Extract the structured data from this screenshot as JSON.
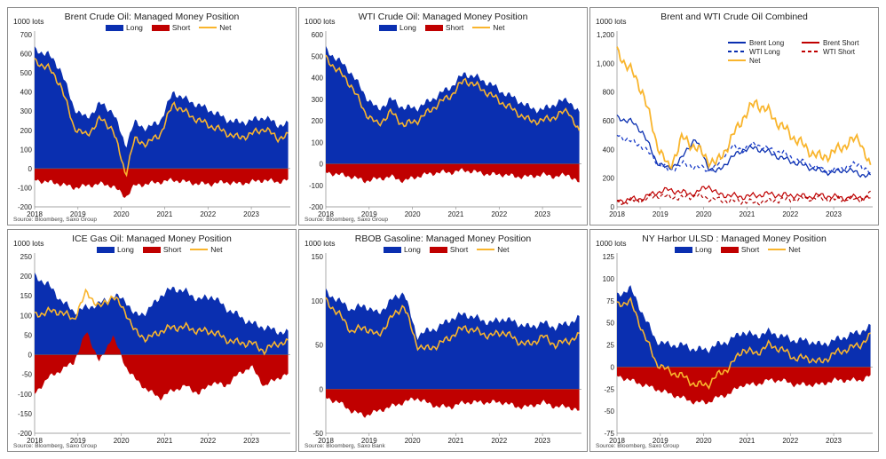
{
  "colors": {
    "long": "#0a2fb0",
    "short": "#c00000",
    "net": "#f9b52d",
    "wti_dash_long": "#1a3cc7",
    "wti_dash_short": "#b00000"
  },
  "legend": {
    "long": "Long",
    "short": "Short",
    "net": "Net"
  },
  "legend_combined": [
    "Brent Long",
    "WTI Long",
    "Net",
    "Brent Short",
    "WTI Short"
  ],
  "panels": [
    {
      "title": "Brent Crude Oil: Managed Money Position",
      "unit": "1000 lots",
      "source": "Source: Bloomberg, Saxo Group"
    },
    {
      "title": "WTI Crude Oil: Managed Money Position",
      "unit": "1000 lots",
      "source": "Source: Bloomberg, Saxo Group"
    },
    {
      "title": "Brent and WTI Crude Oil Combined",
      "unit": "1000 lots",
      "source": ""
    },
    {
      "title": "ICE Gas Oil: Managed Money Position",
      "unit": "1000 lots",
      "source": "Source: Bloomberg, Saxo Group"
    },
    {
      "title": "RBOB Gasoline: Managed Money Position",
      "unit": "1000 lots",
      "source": "Source: Bloomberg, Saxo Bank"
    },
    {
      "title": "NY Harbor ULSD : Managed Money Position",
      "unit": "1000 lots",
      "source": "Source: Bloomberg, Saxo Group"
    }
  ],
  "chart_data": [
    {
      "type": "area",
      "title": "Brent Crude Oil: Managed Money Position",
      "ylim": [
        -200,
        700
      ],
      "yticks": [
        "700",
        "600",
        "500",
        "400",
        "300",
        "200",
        "100",
        "0",
        "-100",
        "-200"
      ],
      "x_labels": [
        "2018",
        "2019",
        "2020",
        "2021",
        "2022",
        "2023"
      ],
      "x": [
        2018.0,
        2018.3,
        2018.6,
        2018.9,
        2019.2,
        2019.5,
        2019.8,
        2020.1,
        2020.3,
        2020.6,
        2020.9,
        2021.2,
        2021.5,
        2021.8,
        2022.1,
        2022.4,
        2022.7,
        2023.0,
        2023.3,
        2023.6,
        2023.85
      ],
      "series": [
        {
          "name": "Long",
          "values": [
            620,
            600,
            520,
            320,
            260,
            340,
            300,
            120,
            240,
            210,
            250,
            400,
            360,
            330,
            300,
            260,
            240,
            250,
            270,
            230,
            230
          ]
        },
        {
          "name": "Short",
          "values": [
            -60,
            -70,
            -80,
            -100,
            -90,
            -80,
            -90,
            -150,
            -90,
            -80,
            -70,
            -60,
            -70,
            -80,
            -80,
            -70,
            -80,
            -70,
            -60,
            -70,
            -60
          ]
        },
        {
          "name": "Net",
          "values": [
            560,
            530,
            440,
            220,
            170,
            260,
            210,
            -30,
            150,
            130,
            180,
            340,
            290,
            250,
            220,
            190,
            160,
            180,
            210,
            160,
            170
          ]
        }
      ]
    },
    {
      "type": "area",
      "title": "WTI Crude Oil: Managed Money Position",
      "ylim": [
        -200,
        600
      ],
      "yticks": [
        "600",
        "500",
        "400",
        "300",
        "200",
        "100",
        "0",
        "-100",
        "-200"
      ],
      "x_labels": [
        "2018",
        "2019",
        "2020",
        "2021",
        "2022",
        "2023"
      ],
      "x": [
        2018.0,
        2018.3,
        2018.6,
        2018.9,
        2019.2,
        2019.5,
        2019.8,
        2020.1,
        2020.3,
        2020.6,
        2020.9,
        2021.2,
        2021.5,
        2021.8,
        2022.1,
        2022.4,
        2022.7,
        2023.0,
        2023.3,
        2023.6,
        2023.85
      ],
      "series": [
        {
          "name": "Long",
          "values": [
            530,
            480,
            420,
            320,
            250,
            300,
            260,
            260,
            280,
            320,
            360,
            420,
            400,
            370,
            330,
            300,
            260,
            250,
            280,
            300,
            230
          ]
        },
        {
          "name": "Short",
          "values": [
            -40,
            -50,
            -60,
            -80,
            -70,
            -60,
            -80,
            -60,
            -50,
            -40,
            -40,
            -30,
            -40,
            -50,
            -50,
            -60,
            -60,
            -50,
            -60,
            -50,
            -90
          ]
        },
        {
          "name": "Net",
          "values": [
            490,
            430,
            360,
            240,
            180,
            240,
            180,
            200,
            230,
            280,
            320,
            390,
            360,
            320,
            280,
            240,
            200,
            200,
            220,
            250,
            140
          ]
        }
      ]
    },
    {
      "type": "line",
      "title": "Brent and WTI Crude Oil Combined",
      "ylim": [
        0,
        1200
      ],
      "yticks": [
        "1,200",
        "1,000",
        "800",
        "600",
        "400",
        "200",
        "0"
      ],
      "x_labels": [
        "2018",
        "2019",
        "2020",
        "2021",
        "2022",
        "2023"
      ],
      "x": [
        2018.0,
        2018.3,
        2018.6,
        2018.9,
        2019.2,
        2019.5,
        2019.8,
        2020.1,
        2020.3,
        2020.6,
        2020.9,
        2021.2,
        2021.5,
        2021.8,
        2022.1,
        2022.4,
        2022.7,
        2023.0,
        2023.3,
        2023.6,
        2023.85
      ],
      "series": [
        {
          "name": "Brent Long",
          "values": [
            620,
            600,
            520,
            320,
            260,
            340,
            480,
            280,
            240,
            330,
            400,
            410,
            380,
            340,
            310,
            280,
            250,
            240,
            260,
            230,
            210
          ]
        },
        {
          "name": "WTI Long",
          "values": [
            500,
            460,
            420,
            320,
            250,
            300,
            280,
            260,
            280,
            420,
            400,
            440,
            400,
            380,
            330,
            300,
            260,
            250,
            280,
            300,
            230
          ]
        },
        {
          "name": "Net",
          "values": [
            1080,
            960,
            800,
            460,
            260,
            480,
            420,
            330,
            300,
            450,
            620,
            730,
            660,
            560,
            480,
            400,
            340,
            380,
            440,
            480,
            260
          ]
        },
        {
          "name": "Brent Short",
          "values": [
            40,
            50,
            60,
            100,
            120,
            100,
            90,
            150,
            90,
            80,
            70,
            80,
            90,
            80,
            80,
            70,
            80,
            70,
            60,
            70,
            60
          ]
        },
        {
          "name": "WTI Short",
          "values": [
            30,
            40,
            50,
            80,
            70,
            60,
            80,
            60,
            50,
            40,
            40,
            30,
            40,
            50,
            50,
            60,
            60,
            50,
            60,
            50,
            90
          ]
        }
      ]
    },
    {
      "type": "area",
      "title": "ICE Gas Oil: Managed Money Position",
      "ylim": [
        -200,
        250
      ],
      "yticks": [
        "250",
        "200",
        "150",
        "100",
        "50",
        "0",
        "-50",
        "-100",
        "-150",
        "-200"
      ],
      "x_labels": [
        "2018",
        "2019",
        "2020",
        "2021",
        "2022",
        "2023"
      ],
      "x": [
        2018.0,
        2018.3,
        2018.6,
        2018.9,
        2019.2,
        2019.5,
        2019.8,
        2020.1,
        2020.3,
        2020.6,
        2020.9,
        2021.2,
        2021.5,
        2021.8,
        2022.1,
        2022.4,
        2022.7,
        2023.0,
        2023.3,
        2023.6,
        2023.85
      ],
      "series": [
        {
          "name": "Long",
          "values": [
            200,
            180,
            140,
            110,
            120,
            130,
            150,
            140,
            100,
            110,
            150,
            170,
            160,
            140,
            150,
            120,
            100,
            80,
            70,
            60,
            55
          ]
        },
        {
          "name": "Short",
          "values": [
            -100,
            -60,
            -40,
            -20,
            60,
            -20,
            50,
            -30,
            -60,
            -90,
            -110,
            -90,
            -80,
            -100,
            -70,
            -80,
            -50,
            -30,
            -80,
            -60,
            -50
          ]
        },
        {
          "name": "Net",
          "values": [
            100,
            110,
            110,
            90,
            160,
            120,
            150,
            110,
            60,
            40,
            60,
            70,
            70,
            60,
            60,
            40,
            30,
            30,
            10,
            30,
            30
          ]
        }
      ]
    },
    {
      "type": "area",
      "title": "RBOB Gasoline: Managed Money Position",
      "ylim": [
        -50,
        150
      ],
      "yticks": [
        "150",
        "100",
        "50",
        "0",
        "-50"
      ],
      "x_labels": [
        "2018",
        "2019",
        "2020",
        "2021",
        "2022",
        "2023"
      ],
      "x": [
        2018.0,
        2018.3,
        2018.6,
        2018.9,
        2019.2,
        2019.5,
        2019.8,
        2020.1,
        2020.3,
        2020.6,
        2020.9,
        2021.2,
        2021.5,
        2021.8,
        2022.1,
        2022.4,
        2022.7,
        2023.0,
        2023.3,
        2023.6,
        2023.85
      ],
      "series": [
        {
          "name": "Long",
          "values": [
            110,
            100,
            90,
            95,
            85,
            100,
            110,
            60,
            65,
            70,
            80,
            85,
            80,
            75,
            80,
            75,
            70,
            75,
            70,
            75,
            80
          ]
        },
        {
          "name": "Short",
          "values": [
            -10,
            -15,
            -25,
            -30,
            -25,
            -20,
            -15,
            -10,
            -15,
            -20,
            -20,
            -15,
            -15,
            -15,
            -15,
            -20,
            -20,
            -15,
            -20,
            -20,
            -25
          ]
        },
        {
          "name": "Net",
          "values": [
            100,
            85,
            65,
            70,
            60,
            80,
            95,
            50,
            45,
            50,
            60,
            70,
            65,
            60,
            65,
            55,
            50,
            60,
            50,
            55,
            60
          ]
        }
      ]
    },
    {
      "type": "area",
      "title": "NY Harbor ULSD : Managed Money Position",
      "ylim": [
        -75,
        125
      ],
      "yticks": [
        "125",
        "100",
        "75",
        "50",
        "25",
        "0",
        "-25",
        "-50",
        "-75"
      ],
      "x_labels": [
        "2018",
        "2019",
        "2020",
        "2021",
        "2022",
        "2023"
      ],
      "x": [
        2018.0,
        2018.3,
        2018.6,
        2018.9,
        2019.2,
        2019.5,
        2019.8,
        2020.1,
        2020.3,
        2020.6,
        2020.9,
        2021.2,
        2021.5,
        2021.8,
        2022.1,
        2022.4,
        2022.7,
        2023.0,
        2023.3,
        2023.6,
        2023.85
      ],
      "series": [
        {
          "name": "Long",
          "values": [
            80,
            90,
            60,
            30,
            25,
            25,
            20,
            20,
            25,
            30,
            40,
            35,
            40,
            35,
            30,
            30,
            25,
            30,
            35,
            40,
            45
          ]
        },
        {
          "name": "Short",
          "values": [
            -10,
            -15,
            -20,
            -25,
            -30,
            -35,
            -40,
            -40,
            -35,
            -30,
            -20,
            -20,
            -15,
            -15,
            -20,
            -20,
            -20,
            -15,
            -15,
            -15,
            -10
          ]
        },
        {
          "name": "Net",
          "values": [
            70,
            75,
            40,
            5,
            -5,
            -10,
            -20,
            -20,
            -10,
            0,
            20,
            15,
            25,
            20,
            10,
            10,
            5,
            15,
            20,
            25,
            35
          ]
        }
      ]
    }
  ]
}
